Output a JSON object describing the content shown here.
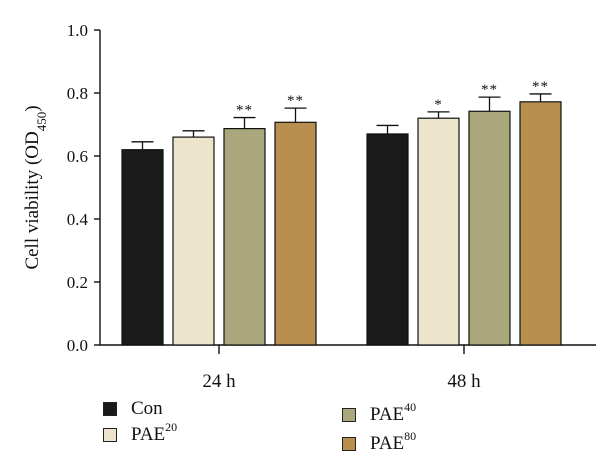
{
  "chart_data": {
    "type": "bar",
    "ylabel": "Cell viability (OD",
    "ylabel_sub": "450",
    "ylabel_end": ")",
    "ylim": [
      0,
      1.0
    ],
    "yticks": [
      "0.0",
      "0.2",
      "0.4",
      "0.6",
      "0.8",
      "1.0"
    ],
    "categories": [
      "24 h",
      "48 h"
    ],
    "series": [
      {
        "name": "Con",
        "base": "Con",
        "sup": "",
        "color": "#1a1a1a",
        "values": [
          0.62,
          0.67
        ],
        "errors": [
          0.025,
          0.027
        ],
        "sig": [
          "",
          ""
        ]
      },
      {
        "name": "PAE20",
        "base": "PAE",
        "sup": "20",
        "color": "#ece5cc",
        "values": [
          0.66,
          0.72
        ],
        "errors": [
          0.02,
          0.02
        ],
        "sig": [
          "",
          "*"
        ]
      },
      {
        "name": "PAE40",
        "base": "PAE",
        "sup": "40",
        "color": "#a9a77b",
        "values": [
          0.687,
          0.742
        ],
        "errors": [
          0.035,
          0.045
        ],
        "sig": [
          "**",
          "**"
        ]
      },
      {
        "name": "PAE80",
        "base": "PAE",
        "sup": "80",
        "color": "#b88f4f",
        "values": [
          0.707,
          0.772
        ],
        "errors": [
          0.045,
          0.025
        ],
        "sig": [
          "**",
          "**"
        ]
      }
    ],
    "grid": false,
    "legend_position": "bottom"
  }
}
